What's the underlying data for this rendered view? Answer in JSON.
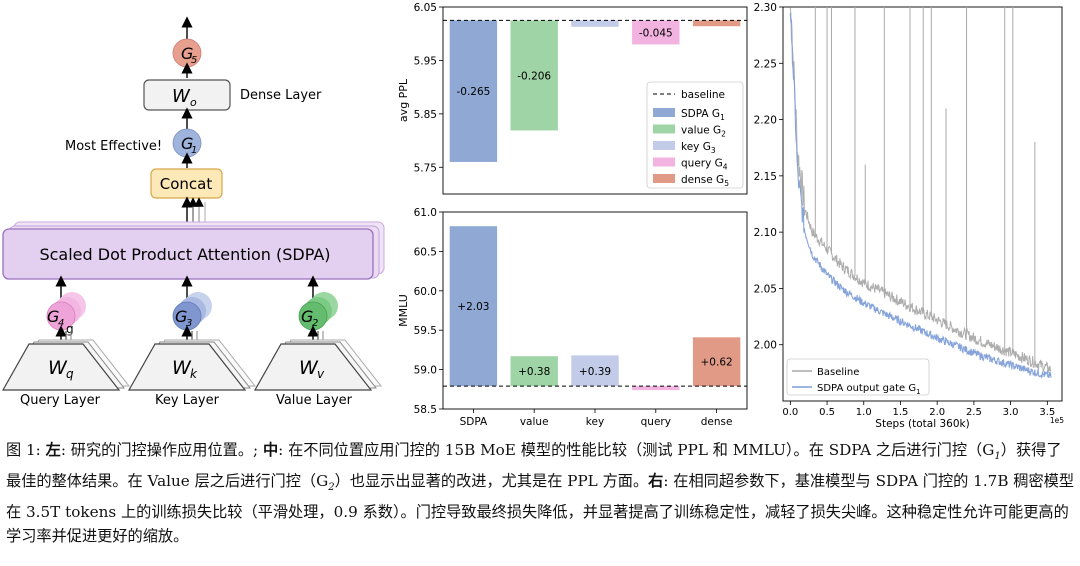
{
  "diagram": {
    "g5": "G",
    "g5_sub": "5",
    "wo": "W",
    "wo_sub": "o",
    "dense_layer": "Dense Layer",
    "most_effective": "Most Effective!",
    "g1": "G",
    "g1_sub": "1",
    "concat": "Concat",
    "sdpa": "Scaled Dot Product Attention (SDPA)",
    "g4": "G",
    "g4_sub": "4",
    "g4_extra": "g",
    "g3": "G",
    "g3_sub": "3",
    "g2": "G",
    "g2_sub": "2",
    "wq": "W",
    "wq_sub": "q",
    "wk": "W",
    "wk_sub": "k",
    "wv": "W",
    "wv_sub": "v",
    "query_layer": "Query Layer",
    "key_layer": "Key Layer",
    "value_layer": "Value Layer"
  },
  "chart_data": [
    {
      "type": "bar",
      "title": "",
      "ylabel": "avg PPL",
      "xlabel": "",
      "categories": [
        "SDPA",
        "value",
        "key",
        "query",
        "dense"
      ],
      "values": [
        -0.265,
        -0.206,
        -0.012,
        -0.045,
        -0.011
      ],
      "value_labels": [
        "-0.265",
        "-0.206",
        "",
        "-0.045",
        ""
      ],
      "baseline": 6.025,
      "ylim": [
        5.7,
        6.05
      ],
      "yticks": [
        5.75,
        5.85,
        5.95,
        6.05
      ],
      "ytick_labels": [
        "5.75",
        "5.85",
        "5.95",
        "6.05"
      ],
      "colors": [
        "#8fa8d4",
        "#9fd4a6",
        "#c2cbe8",
        "#f2b3e0",
        "#e09a86"
      ],
      "legend": {
        "position": "lower-right",
        "baseline_label": "baseline",
        "entries": [
          {
            "label": "SDPA G",
            "sub": "1",
            "color": "#8fa8d4"
          },
          {
            "label": "value G",
            "sub": "2",
            "color": "#9fd4a6"
          },
          {
            "label": "key G",
            "sub": "3",
            "color": "#c2cbe8"
          },
          {
            "label": "query G",
            "sub": "4",
            "color": "#f2b3e0"
          },
          {
            "label": "dense G",
            "sub": "5",
            "color": "#e09a86"
          }
        ]
      }
    },
    {
      "type": "bar",
      "title": "",
      "ylabel": "MMLU",
      "xlabel": "",
      "categories": [
        "SDPA",
        "value",
        "key",
        "query",
        "dense"
      ],
      "values": [
        2.03,
        0.38,
        0.39,
        -0.05,
        0.62
      ],
      "value_labels": [
        "+2.03",
        "+0.38",
        "+0.39",
        "",
        "+0.62"
      ],
      "baseline": 58.79,
      "ylim": [
        58.5,
        61.0
      ],
      "yticks": [
        58.5,
        59.0,
        59.5,
        60.0,
        60.5,
        61.0
      ],
      "ytick_labels": [
        "58.5",
        "59.0",
        "59.5",
        "60.0",
        "60.5",
        "61.0"
      ],
      "colors": [
        "#8fa8d4",
        "#9fd4a6",
        "#c2cbe8",
        "#f2b3e0",
        "#e09a86"
      ]
    },
    {
      "type": "line",
      "title": "",
      "xlabel": "Steps (total 360k)",
      "x_scale_label": "1e5",
      "ylabel": "",
      "xlim": [
        -0.1,
        3.7
      ],
      "ylim": [
        1.95,
        2.3
      ],
      "xticks": [
        0.0,
        0.5,
        1.0,
        1.5,
        2.0,
        2.5,
        3.0,
        3.5
      ],
      "xtick_labels": [
        "0.0",
        "0.5",
        "1.0",
        "1.5",
        "2.0",
        "2.5",
        "3.0",
        "3.5"
      ],
      "yticks": [
        2.0,
        2.05,
        2.1,
        2.15,
        2.2,
        2.25,
        2.3
      ],
      "ytick_labels": [
        "2.00",
        "2.05",
        "2.10",
        "2.15",
        "2.20",
        "2.25",
        "2.30"
      ],
      "legend": {
        "position": "lower-left"
      },
      "series": [
        {
          "name": "Baseline",
          "color": "#a9a9a9",
          "x": [
            0.0,
            0.05,
            0.1,
            0.2,
            0.3,
            0.5,
            0.7,
            1.0,
            1.3,
            1.6,
            2.0,
            2.3,
            2.6,
            3.0,
            3.3,
            3.55
          ],
          "y": [
            2.3,
            2.24,
            2.17,
            2.12,
            2.1,
            2.085,
            2.07,
            2.055,
            2.045,
            2.035,
            2.022,
            2.012,
            2.003,
            1.993,
            1.985,
            1.978
          ],
          "spikes": [
            {
              "x": 0.34,
              "y": 2.3
            },
            {
              "x": 0.5,
              "y": 2.3
            },
            {
              "x": 0.56,
              "y": 2.3
            },
            {
              "x": 0.88,
              "y": 2.3
            },
            {
              "x": 1.02,
              "y": 2.16
            },
            {
              "x": 1.28,
              "y": 2.3
            },
            {
              "x": 1.63,
              "y": 2.3
            },
            {
              "x": 1.81,
              "y": 2.3
            },
            {
              "x": 1.92,
              "y": 2.3
            },
            {
              "x": 2.12,
              "y": 2.21
            },
            {
              "x": 2.4,
              "y": 2.3
            },
            {
              "x": 2.92,
              "y": 2.3
            },
            {
              "x": 3.03,
              "y": 2.3
            },
            {
              "x": 3.33,
              "y": 2.18
            }
          ]
        },
        {
          "name": "SDPA output gate G",
          "name_sub": "1",
          "color": "#7f9fd8",
          "x": [
            0.0,
            0.05,
            0.1,
            0.2,
            0.3,
            0.5,
            0.7,
            1.0,
            1.3,
            1.6,
            2.0,
            2.3,
            2.6,
            3.0,
            3.3,
            3.55
          ],
          "y": [
            2.3,
            2.23,
            2.15,
            2.1,
            2.08,
            2.062,
            2.05,
            2.037,
            2.027,
            2.018,
            2.006,
            1.998,
            1.99,
            1.982,
            1.976,
            1.972
          ]
        }
      ]
    }
  ],
  "caption": {
    "fig": "图 1:",
    "left_label": "左",
    "left_text": ": 研究的门控操作应用位置。;",
    "mid_label": "中",
    "mid_text": ": 在不同位置应用门控的 15B MoE 模型的性能比较（测试 PPL 和 MMLU）。在 SDPA 之后进行门控（G",
    "mid_text_sub": "1",
    "mid_text2": "）获得了最佳的整体结果。在 Value 层之后进行门控（G",
    "mid_text2_sub": "2",
    "mid_text3": "）也显示出显著的改进，尤其是在 PPL 方面。",
    "right_label": "右",
    "right_text": ": 在相同超参数下，基准模型与 SDPA 门控的 1.7B 稠密模型在 3.5T tokens 上的训练损失比较（平滑处理，0.9 系数）。门控导致最终损失降低，并显著提高了训练稳定性，减轻了损失尖峰。这种稳定性允许可能更高的学习率并促进更好的缩放。"
  }
}
